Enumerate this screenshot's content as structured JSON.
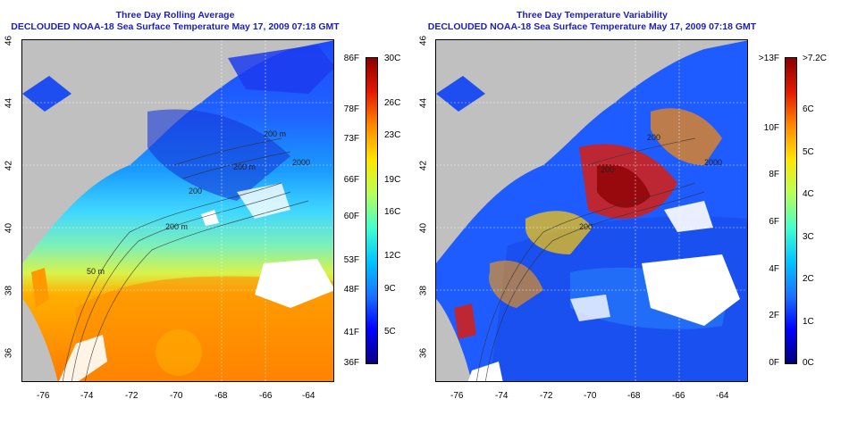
{
  "left_panel": {
    "title_line1": "Three Day Rolling Average",
    "title_line2": "DECLOUDED NOAA-18 Sea Surface Temperature May 17, 2009 07:18 GMT",
    "colorbar": {
      "fahrenheit_ticks": [
        "86F",
        "78F",
        "73F",
        "66F",
        "60F",
        "53F",
        "48F",
        "41F",
        "36F"
      ],
      "celsius_ticks": [
        "30C",
        "26C",
        "23C",
        "19C",
        "16C",
        "12C",
        "9C",
        "5C"
      ],
      "colors": [
        "#0b0080",
        "#0000ff",
        "#1a73ff",
        "#00c4ff",
        "#44ffcf",
        "#b8ff5a",
        "#ffe600",
        "#ff8a00",
        "#e31a00",
        "#8b0000"
      ]
    },
    "contour_labels": [
      "200 m",
      "200 m",
      "2000",
      "50 m",
      "200",
      "200 m"
    ]
  },
  "right_panel": {
    "title_line1": "Three Day Temperature Variability",
    "title_line2": "DECLOUDED NOAA-18 Sea Surface Temperature May 17, 2009 07:18 GMT",
    "colorbar": {
      "fahrenheit_ticks": [
        ">13F",
        "10F",
        "8F",
        "6F",
        "4F",
        "2F",
        "0F"
      ],
      "celsius_ticks": [
        ">7.2C",
        "6C",
        "5C",
        "4C",
        "3C",
        "2C",
        "1C",
        "0C"
      ],
      "colors": [
        "#00007a",
        "#0000ff",
        "#1a73ff",
        "#00c4ff",
        "#44ffcf",
        "#b8ff5a",
        "#ffe600",
        "#ff8a00",
        "#e31a00",
        "#8b0000"
      ]
    },
    "contour_labels": [
      "2000",
      "200",
      "200",
      "200"
    ]
  },
  "map": {
    "longitude_ticks": [
      "-76",
      "-74",
      "-72",
      "-70",
      "-68",
      "-66",
      "-64"
    ],
    "latitude_ticks": [
      "46",
      "44",
      "42",
      "40",
      "38",
      "36"
    ]
  }
}
